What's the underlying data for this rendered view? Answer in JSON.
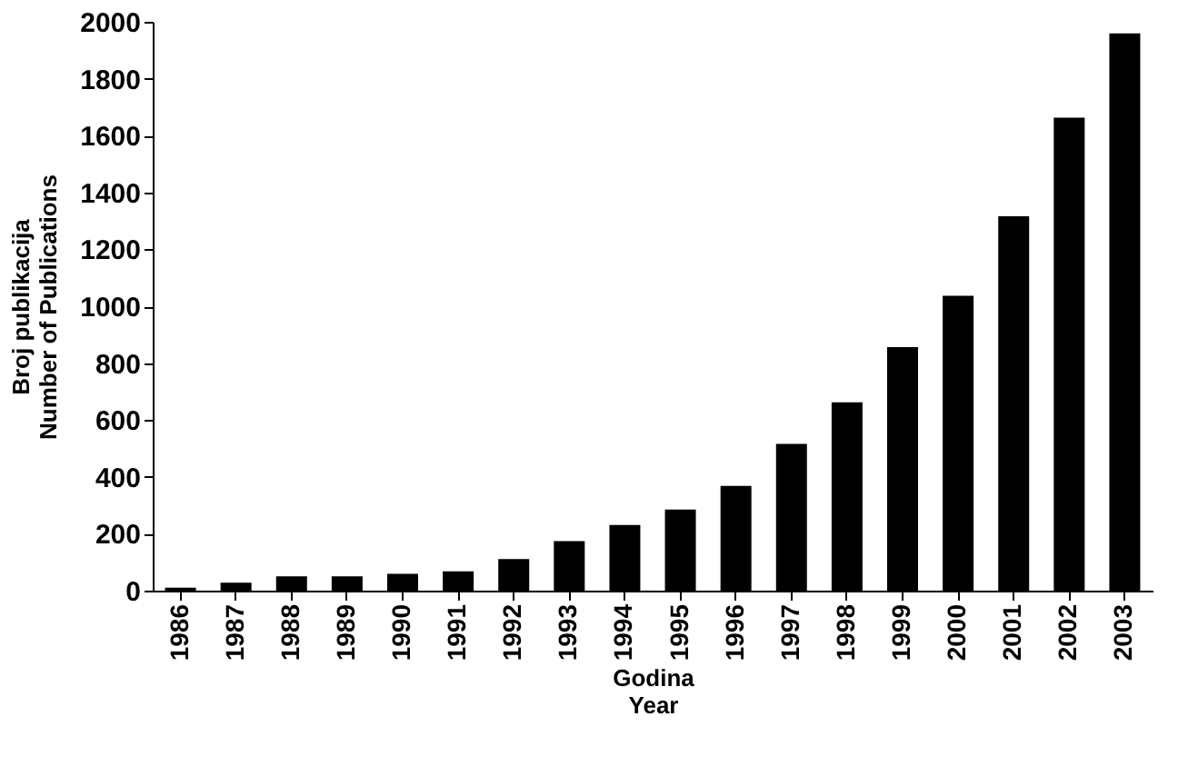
{
  "chart_data": {
    "type": "bar",
    "xlabel": "Godina\nYear",
    "ylabel": "Broj publikacija\nNumber of Publications",
    "categories": [
      "1986",
      "1987",
      "1988",
      "1989",
      "1990",
      "1991",
      "1992",
      "1993",
      "1994",
      "1995",
      "1996",
      "1997",
      "1998",
      "1999",
      "2000",
      "2001",
      "2002",
      "2003"
    ],
    "values": [
      10,
      28,
      50,
      50,
      59,
      68,
      111,
      174,
      231,
      285,
      368,
      516,
      662,
      856,
      1037,
      1316,
      1663,
      1959
    ],
    "color": "#000000",
    "ylim": [
      0,
      2000
    ],
    "yticks": [
      0,
      200,
      400,
      600,
      800,
      1000,
      1200,
      1400,
      1600,
      1800,
      2000
    ],
    "grid": false
  }
}
